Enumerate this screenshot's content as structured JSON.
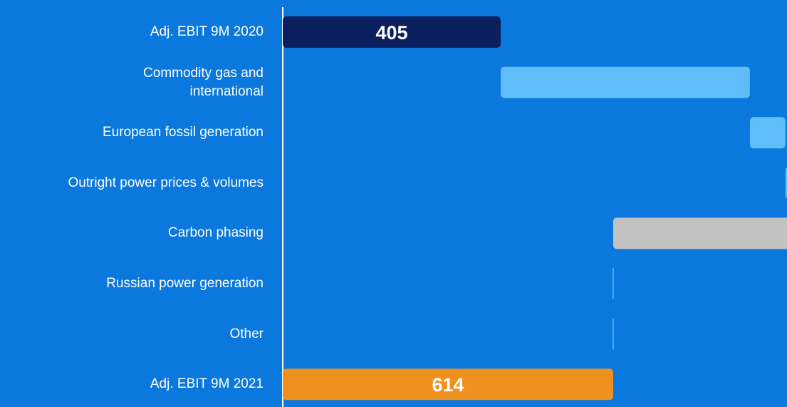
{
  "chart_data": {
    "type": "waterfall",
    "orientation": "horizontal",
    "categories": [
      "Adj. EBIT 9M 2020",
      "Commodity gas and\ninternational",
      "European fossil generation",
      "Outright power prices & volumes",
      "Carbon phasing",
      "Russian power generation",
      "Other",
      "Adj. EBIT 9M 2021"
    ],
    "values": [
      405,
      463,
      66,
      10,
      -330,
      -1,
      1,
      614
    ],
    "measure": [
      "absolute",
      "relative",
      "relative",
      "relative",
      "relative",
      "relative",
      "relative",
      "total"
    ],
    "colors": [
      "#0b1f5e",
      "#5fbdf8",
      "#5fbdf8",
      "#5fbdf8",
      "#c2c2c2",
      "#5fbdf8",
      "#5fbdf8",
      "#f0901f"
    ],
    "xlim": [
      0,
      933
    ]
  }
}
